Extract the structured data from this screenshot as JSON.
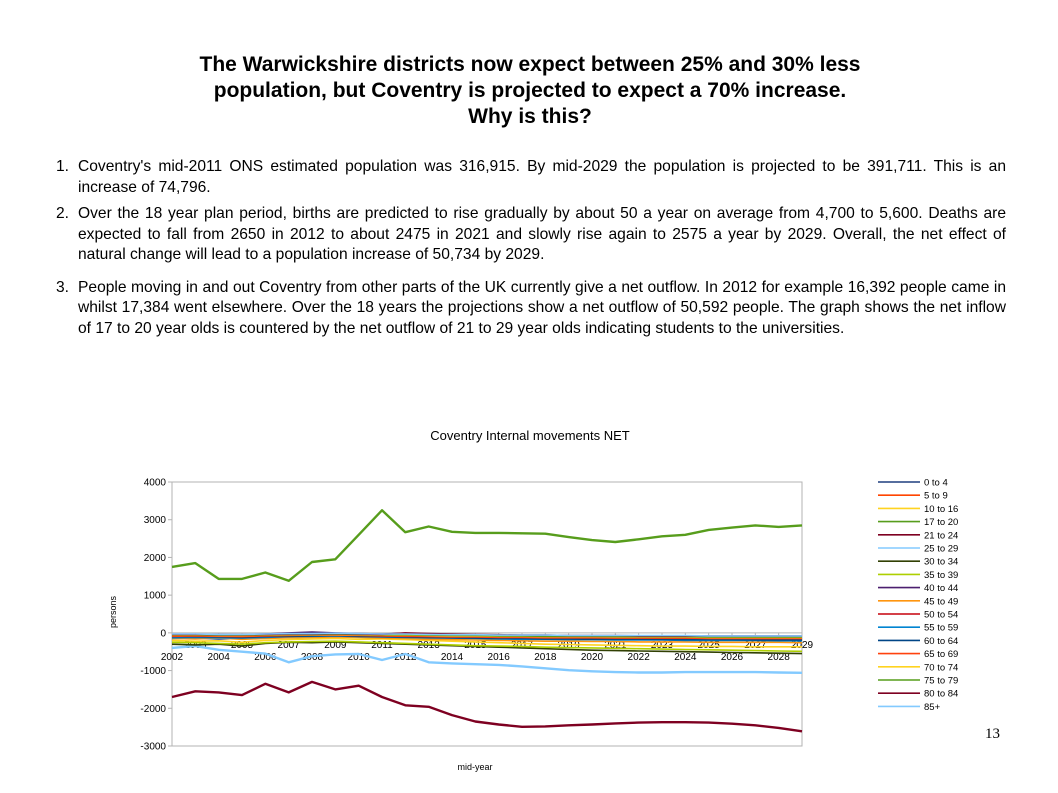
{
  "title": {
    "line1": "The Warwickshire districts now expect between 25% and 30% less",
    "line2": "population, but Coventry is projected to expect a 70% increase.",
    "line3": "Why is this?"
  },
  "points": [
    {
      "num": "1.",
      "text": "Coventry's mid-2011  ONS estimated population was 316,915. By mid-2029 the population is projected to be 391,711. This is an increase of 74,796."
    },
    {
      "num": "2.",
      "text": "Over the 18 year plan period, births are predicted to rise gradually by about 50 a year on average from 4,700 to 5,600. Deaths are expected to fall from 2650 in 2012 to about 2475 in 2021 and slowly rise again to 2575 a year by 2029. Overall, the net effect of natural change will lead to a population increase of 50,734 by 2029."
    },
    {
      "num": "3.",
      "text": "People moving in and out Coventry from other parts of the UK currently give a net outflow. In 2012 for example 16,392 people came in whilst 17,384 went elsewhere. Over the 18 years the projections show a net outflow of 50,592 people. The graph shows the net inflow of 17 to 20 year olds is countered by the net outflow of 21 to 29 year olds indicating students to the universities."
    }
  ],
  "page_number": "13",
  "chart_data": {
    "type": "line",
    "title": "Coventry Internal movements NET",
    "xlabel": "mid-year",
    "ylabel": "persons",
    "ylim": [
      -3000,
      4000
    ],
    "yticks": [
      "4000",
      "3000",
      "2000",
      "1000",
      "0",
      "-1000",
      "-2000",
      "-3000"
    ],
    "ytick_values": [
      4000,
      3000,
      2000,
      1000,
      0,
      -1000,
      -2000,
      -3000
    ],
    "x": [
      2002,
      2003,
      2004,
      2005,
      2006,
      2007,
      2008,
      2009,
      2010,
      2011,
      2012,
      2013,
      2014,
      2015,
      2016,
      2017,
      2018,
      2019,
      2020,
      2021,
      2022,
      2023,
      2024,
      2025,
      2026,
      2027,
      2028,
      2029
    ],
    "xticks_lower": [
      "2002",
      "2004",
      "2006",
      "2008",
      "2010",
      "2012",
      "2014",
      "2016",
      "2018",
      "2020",
      "2022",
      "2024",
      "2026",
      "2028"
    ],
    "xticks_upper": [
      "2003",
      "2005",
      "2007",
      "2009",
      "2011",
      "2013",
      "2015",
      "2017",
      "2019",
      "2021",
      "2023",
      "2025",
      "2027",
      "2029"
    ],
    "grid": false,
    "legend_position": "right",
    "series": [
      {
        "name": "0 to 4",
        "color": "#1f3f7f",
        "values": [
          -150,
          -140,
          -160,
          -150,
          -120,
          -100,
          -90,
          -80,
          -100,
          -90,
          -100,
          -110,
          -120,
          -130,
          -140,
          -150,
          -160,
          -170,
          -170,
          -175,
          -175,
          -175,
          -175,
          -180,
          -180,
          -180,
          -180,
          -180
        ]
      },
      {
        "name": "5 to 9",
        "color": "#ff4500",
        "values": [
          -100,
          -110,
          -120,
          -130,
          -100,
          -90,
          -80,
          -70,
          -60,
          -80,
          -60,
          -70,
          -80,
          -90,
          -100,
          -110,
          -120,
          -120,
          -130,
          -130,
          -130,
          -140,
          -140,
          -140,
          -140,
          -150,
          -150,
          -150
        ]
      },
      {
        "name": "10 to 16",
        "color": "#ffd320",
        "values": [
          -200,
          -220,
          -210,
          -250,
          -200,
          -180,
          -160,
          -150,
          -170,
          -160,
          -180,
          -200,
          -220,
          -240,
          -260,
          -280,
          -300,
          -310,
          -320,
          -330,
          -340,
          -350,
          -350,
          -360,
          -360,
          -370,
          -370,
          -370
        ]
      },
      {
        "name": "17 to 20",
        "color": "#579d1c",
        "values": [
          1750,
          1850,
          1430,
          1430,
          1600,
          1380,
          1880,
          1950,
          2600,
          3250,
          2670,
          2820,
          2680,
          2650,
          2650,
          2640,
          2630,
          2540,
          2460,
          2410,
          2480,
          2560,
          2600,
          2730,
          2790,
          2850,
          2810,
          2850
        ]
      },
      {
        "name": "21 to 24",
        "color": "#7e0021",
        "values": [
          -1700,
          -1550,
          -1580,
          -1650,
          -1350,
          -1580,
          -1300,
          -1500,
          -1400,
          -1700,
          -1920,
          -1960,
          -2180,
          -2350,
          -2430,
          -2490,
          -2480,
          -2450,
          -2430,
          -2400,
          -2380,
          -2370,
          -2370,
          -2380,
          -2410,
          -2450,
          -2520,
          -2610
        ]
      },
      {
        "name": "25 to 29",
        "color": "#83caff",
        "values": [
          -400,
          -350,
          -450,
          -500,
          -550,
          -780,
          -620,
          -570,
          -560,
          -720,
          -560,
          -780,
          -810,
          -830,
          -850,
          -890,
          -940,
          -990,
          -1020,
          -1040,
          -1050,
          -1050,
          -1040,
          -1040,
          -1040,
          -1040,
          -1050,
          -1060
        ]
      },
      {
        "name": "30 to 34",
        "color": "#314004",
        "values": [
          -300,
          -320,
          -300,
          -350,
          -280,
          -250,
          -260,
          -240,
          -260,
          -280,
          -300,
          -320,
          -340,
          -360,
          -380,
          -400,
          -420,
          -440,
          -460,
          -470,
          -480,
          -490,
          -500,
          -510,
          -520,
          -530,
          -540,
          -550
        ]
      },
      {
        "name": "35 to 39",
        "color": "#aecf00",
        "values": [
          -250,
          -260,
          -280,
          -300,
          -260,
          -240,
          -230,
          -220,
          -240,
          -260,
          -280,
          -300,
          -320,
          -340,
          -350,
          -360,
          -380,
          -390,
          -400,
          -410,
          -420,
          -430,
          -440,
          -450,
          -460,
          -470,
          -480,
          -490
        ]
      },
      {
        "name": "40 to 44",
        "color": "#4b1f6f",
        "values": [
          -60,
          -50,
          -40,
          -50,
          -30,
          0,
          20,
          0,
          -20,
          -30,
          -10,
          -40,
          -60,
          -80,
          -90,
          -100,
          -110,
          -110,
          -120,
          -120,
          -120,
          -130,
          -130,
          -130,
          -130,
          -140,
          -140,
          -140
        ]
      },
      {
        "name": "45 to 49",
        "color": "#ff950e",
        "values": [
          -150,
          -160,
          -140,
          -170,
          -150,
          -130,
          -120,
          -110,
          -120,
          -140,
          -150,
          -170,
          -180,
          -190,
          -200,
          -210,
          -220,
          -220,
          -230,
          -230,
          -240,
          -240,
          -240,
          -250,
          -250,
          -250,
          -250,
          -260
        ]
      },
      {
        "name": "50 to 54",
        "color": "#c5000b",
        "values": [
          -80,
          -90,
          -100,
          -110,
          -90,
          -70,
          -60,
          -50,
          -70,
          -80,
          -90,
          -100,
          -110,
          -120,
          -130,
          -140,
          -150,
          -150,
          -160,
          -160,
          -160,
          -170,
          -170,
          -170,
          -170,
          -180,
          -180,
          -180
        ]
      },
      {
        "name": "55 to 59",
        "color": "#0084d1",
        "values": [
          -130,
          -120,
          -130,
          -140,
          -120,
          -100,
          -90,
          -80,
          -100,
          -110,
          -120,
          -130,
          -140,
          -150,
          -160,
          -170,
          -170,
          -180,
          -180,
          -190,
          -190,
          -190,
          -200,
          -200,
          -200,
          -200,
          -210,
          -210
        ]
      },
      {
        "name": "60 to 64",
        "color": "#004586",
        "values": [
          -100,
          -100,
          -110,
          -120,
          -100,
          -90,
          -80,
          -70,
          -90,
          -100,
          -110,
          -120,
          -130,
          -140,
          -150,
          -150,
          -160,
          -160,
          -170,
          -170,
          -170,
          -180,
          -180,
          -180,
          -180,
          -190,
          -190,
          -190
        ]
      },
      {
        "name": "65 to 69",
        "color": "#ff420e",
        "values": [
          -90,
          -80,
          -90,
          -100,
          -80,
          -70,
          -60,
          -60,
          -70,
          -80,
          -90,
          -100,
          -110,
          -110,
          -120,
          -120,
          -130,
          -130,
          -130,
          -140,
          -140,
          -140,
          -140,
          -150,
          -150,
          -150,
          -150,
          -150
        ]
      },
      {
        "name": "70 to 74",
        "color": "#ffd320",
        "values": [
          -60,
          -60,
          -70,
          -70,
          -60,
          -50,
          -50,
          -40,
          -50,
          -60,
          -60,
          -70,
          -80,
          -80,
          -90,
          -90,
          -100,
          -100,
          -100,
          -110,
          -110,
          -110,
          -110,
          -120,
          -120,
          -120,
          -120,
          -120
        ]
      },
      {
        "name": "75 to 79",
        "color": "#579d1c",
        "values": [
          -50,
          -50,
          -60,
          -60,
          -50,
          -40,
          -40,
          -30,
          -40,
          -50,
          -50,
          -60,
          -70,
          -70,
          -80,
          -80,
          -90,
          -90,
          -90,
          -100,
          -100,
          -100,
          -100,
          -110,
          -110,
          -110,
          -110,
          -110
        ]
      },
      {
        "name": "80 to 84",
        "color": "#7e0021",
        "values": [
          -40,
          -40,
          -50,
          -50,
          -40,
          -30,
          -30,
          -20,
          -30,
          -40,
          0,
          -20,
          -30,
          -40,
          -50,
          -60,
          -60,
          -70,
          -70,
          -70,
          -80,
          -80,
          -80,
          -80,
          -80,
          -80,
          -80,
          -80
        ]
      },
      {
        "name": "85+",
        "color": "#83caff",
        "values": [
          -30,
          -30,
          -40,
          -40,
          -30,
          -20,
          -20,
          -10,
          -20,
          -30,
          -30,
          -40,
          -50,
          -50,
          -60,
          -60,
          -60,
          -70,
          -70,
          -70,
          -70,
          -70,
          -70,
          -80,
          -80,
          -80,
          -80,
          -80
        ]
      }
    ]
  }
}
